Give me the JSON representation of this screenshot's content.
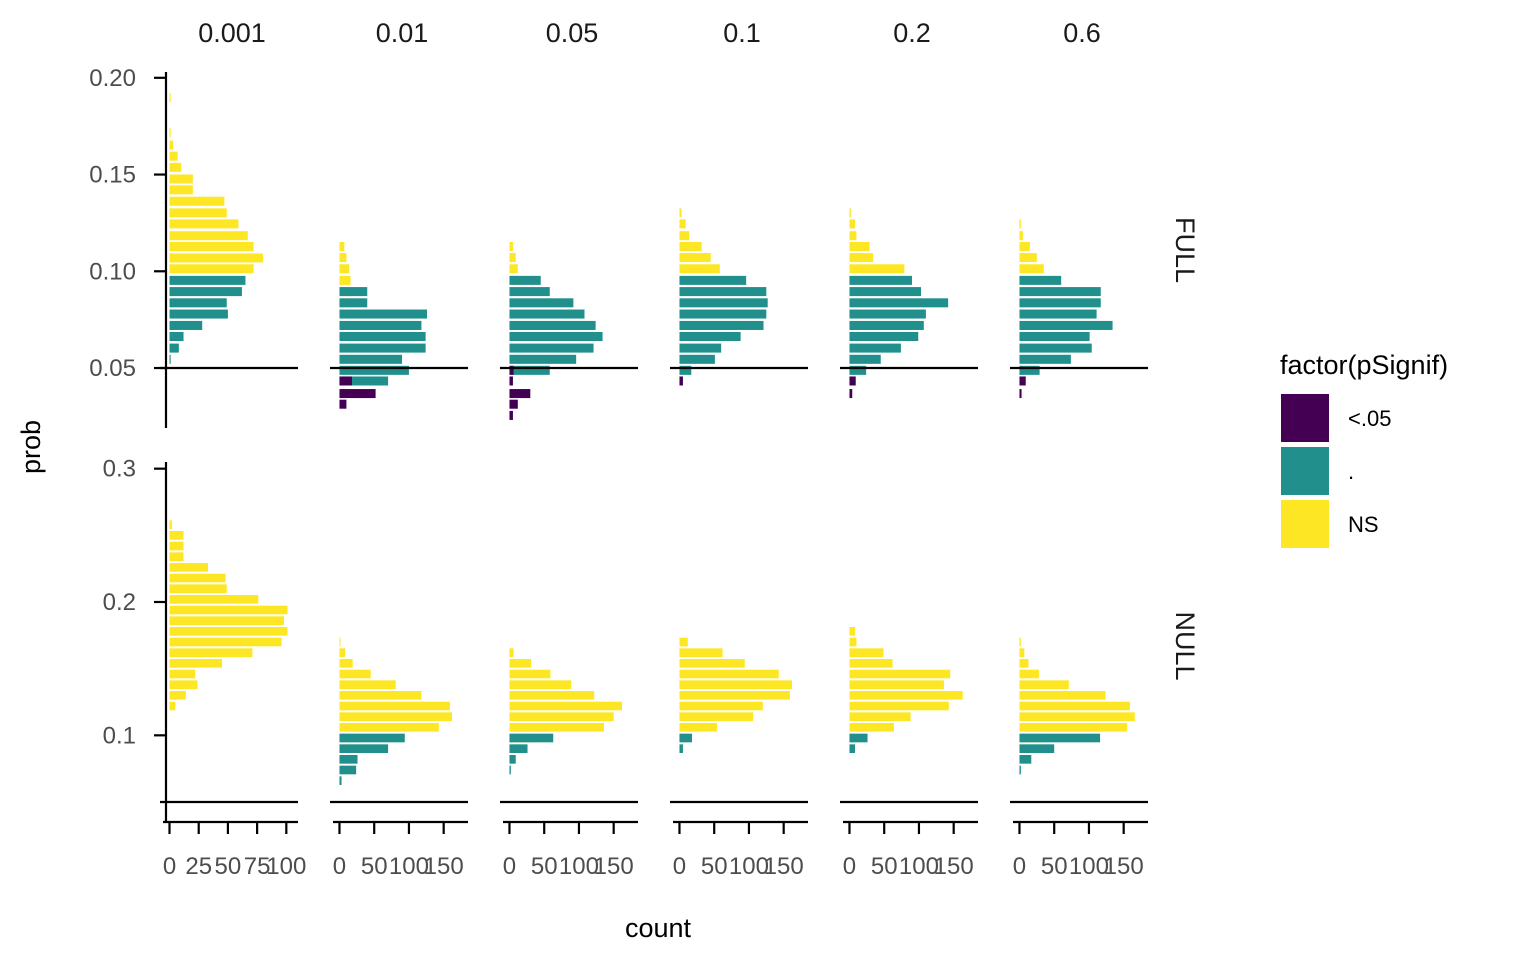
{
  "chart_data": {
    "type": "bar",
    "orientation": "horizontal",
    "facet_columns": [
      "0.001",
      "0.01",
      "0.05",
      "0.1",
      "0.2",
      "0.6"
    ],
    "facet_rows": [
      "FULL",
      "NULL"
    ],
    "xlabel": "count",
    "ylabel": "prob",
    "x_ticks": {
      "0.001": [
        0,
        25,
        50,
        75,
        100
      ],
      "0.01": [
        0,
        50,
        100,
        150
      ],
      "0.05": [
        0,
        50,
        100,
        150
      ],
      "0.1": [
        0,
        50,
        100,
        150
      ],
      "0.2": [
        0,
        50,
        100,
        150
      ],
      "0.6": [
        0,
        50,
        100,
        150
      ]
    },
    "x_tick_labels": {
      "0.001": [
        "0",
        "25",
        "50",
        "75",
        "100"
      ],
      "other": [
        "0",
        "50",
        "100",
        "150"
      ]
    },
    "xlim": {
      "0.001": [
        -3,
        110
      ],
      "other": [
        -5,
        185
      ]
    },
    "rows": {
      "FULL": {
        "ylim": [
          0.019,
          0.203
        ],
        "yticks": [
          0.05,
          0.1,
          0.15,
          0.2
        ],
        "ytick_labels": [
          "0.05",
          "0.10",
          "0.15",
          "0.20"
        ],
        "baseline": 0.05
      },
      "NULL": {
        "ylim": [
          0.035,
          0.305
        ],
        "yticks": [
          0.1,
          0.2,
          0.3
        ],
        "ytick_labels": [
          "0.1",
          "0.2",
          "0.3"
        ],
        "baseline": 0.05
      }
    },
    "legend": {
      "title": "factor(pSignif)",
      "position": "right",
      "entries": [
        {
          "label": "<.05",
          "color": "#440154"
        },
        {
          "label": ".",
          "color": "#21908C"
        },
        {
          "label": "NS",
          "color": "#FDE725"
        }
      ]
    },
    "grid": false,
    "bin_width": {
      "FULL": 0.0057,
      "NULL": 0.008
    },
    "panels": [
      {
        "row": "FULL",
        "col": "0.001",
        "bars": [
          [
            0.1897,
            1,
            "NS"
          ],
          [
            0.1716,
            1,
            "NS"
          ],
          [
            0.1652,
            3,
            "NS"
          ],
          [
            0.1595,
            7,
            "NS"
          ],
          [
            0.1537,
            10,
            "NS"
          ],
          [
            0.1477,
            20,
            "NS"
          ],
          [
            0.1421,
            20,
            "NS"
          ],
          [
            0.1362,
            47,
            "NS"
          ],
          [
            0.1302,
            49,
            "NS"
          ],
          [
            0.1245,
            59,
            "NS"
          ],
          [
            0.1184,
            67,
            "NS"
          ],
          [
            0.1128,
            72,
            "NS"
          ],
          [
            0.1069,
            80,
            "NS"
          ],
          [
            0.1013,
            72,
            "NS"
          ],
          [
            0.0953,
            65,
            "."
          ],
          [
            0.0895,
            62,
            "."
          ],
          [
            0.0837,
            49,
            "."
          ],
          [
            0.0779,
            50,
            "."
          ],
          [
            0.072,
            28,
            "."
          ],
          [
            0.0663,
            12,
            "."
          ],
          [
            0.0603,
            8,
            "."
          ],
          [
            0.0545,
            1,
            "."
          ]
        ]
      },
      {
        "row": "FULL",
        "col": "0.01",
        "bars": [
          [
            0.1128,
            7,
            "NS"
          ],
          [
            0.1071,
            10,
            "NS"
          ],
          [
            0.1013,
            14,
            "NS"
          ],
          [
            0.0953,
            16,
            "NS"
          ],
          [
            0.0895,
            16,
            "NS"
          ],
          [
            0.0895,
            40,
            "."
          ],
          [
            0.0837,
            40,
            "."
          ],
          [
            0.0779,
            126,
            "."
          ],
          [
            0.072,
            118,
            "."
          ],
          [
            0.0663,
            124,
            "."
          ],
          [
            0.0603,
            124,
            "."
          ],
          [
            0.0545,
            90,
            "."
          ],
          [
            0.0488,
            100,
            "."
          ],
          [
            0.0433,
            70,
            "."
          ],
          [
            0.0433,
            18,
            "<.05"
          ],
          [
            0.0368,
            52,
            "<.05"
          ],
          [
            0.0313,
            10,
            "<.05"
          ]
        ]
      },
      {
        "row": "FULL",
        "col": "0.05",
        "bars": [
          [
            0.1128,
            5,
            "NS"
          ],
          [
            0.1071,
            9,
            "NS"
          ],
          [
            0.1013,
            12,
            "NS"
          ],
          [
            0.0953,
            13,
            "NS"
          ],
          [
            0.0953,
            45,
            "."
          ],
          [
            0.0895,
            58,
            "."
          ],
          [
            0.0837,
            92,
            "."
          ],
          [
            0.0779,
            108,
            "."
          ],
          [
            0.072,
            124,
            "."
          ],
          [
            0.0663,
            134,
            "."
          ],
          [
            0.0603,
            121,
            "."
          ],
          [
            0.0545,
            96,
            "."
          ],
          [
            0.0488,
            58,
            "."
          ],
          [
            0.0488,
            6,
            "<.05"
          ],
          [
            0.0433,
            5,
            "<.05"
          ],
          [
            0.0368,
            30,
            "<.05"
          ],
          [
            0.0313,
            12,
            "<.05"
          ],
          [
            0.0255,
            5,
            "<.05"
          ]
        ]
      },
      {
        "row": "FULL",
        "col": "0.1",
        "bars": [
          [
            0.1302,
            3,
            "NS"
          ],
          [
            0.1245,
            9,
            "NS"
          ],
          [
            0.1184,
            14,
            "NS"
          ],
          [
            0.1128,
            32,
            "NS"
          ],
          [
            0.1071,
            45,
            "NS"
          ],
          [
            0.1013,
            58,
            "NS"
          ],
          [
            0.0953,
            96,
            "."
          ],
          [
            0.0895,
            125,
            "."
          ],
          [
            0.0837,
            127,
            "."
          ],
          [
            0.0779,
            125,
            "."
          ],
          [
            0.072,
            121,
            "."
          ],
          [
            0.0663,
            88,
            "."
          ],
          [
            0.0603,
            60,
            "."
          ],
          [
            0.0545,
            51,
            "."
          ],
          [
            0.0488,
            17,
            "."
          ],
          [
            0.0433,
            5,
            "<.05"
          ]
        ]
      },
      {
        "row": "FULL",
        "col": "0.2",
        "bars": [
          [
            0.1302,
            2,
            "NS"
          ],
          [
            0.1245,
            8,
            "NS"
          ],
          [
            0.1184,
            10,
            "NS"
          ],
          [
            0.1128,
            29,
            "NS"
          ],
          [
            0.1071,
            34,
            "NS"
          ],
          [
            0.1013,
            79,
            "NS"
          ],
          [
            0.0953,
            90,
            "."
          ],
          [
            0.0895,
            103,
            "."
          ],
          [
            0.0837,
            142,
            "."
          ],
          [
            0.0779,
            110,
            "."
          ],
          [
            0.072,
            107,
            "."
          ],
          [
            0.0663,
            99,
            "."
          ],
          [
            0.0603,
            74,
            "."
          ],
          [
            0.0545,
            45,
            "."
          ],
          [
            0.0488,
            24,
            "."
          ],
          [
            0.0433,
            9,
            "<.05"
          ],
          [
            0.0368,
            4,
            "<.05"
          ]
        ]
      },
      {
        "row": "FULL",
        "col": "0.6",
        "bars": [
          [
            0.1245,
            2,
            "NS"
          ],
          [
            0.1184,
            5,
            "NS"
          ],
          [
            0.1128,
            15,
            "NS"
          ],
          [
            0.1071,
            25,
            "NS"
          ],
          [
            0.1013,
            35,
            "NS"
          ],
          [
            0.0953,
            60,
            "."
          ],
          [
            0.0895,
            117,
            "."
          ],
          [
            0.0837,
            117,
            "."
          ],
          [
            0.0779,
            111,
            "."
          ],
          [
            0.072,
            134,
            "."
          ],
          [
            0.0663,
            101,
            "."
          ],
          [
            0.0603,
            104,
            "."
          ],
          [
            0.0545,
            74,
            "."
          ],
          [
            0.0488,
            29,
            "."
          ],
          [
            0.0488,
            4,
            "."
          ],
          [
            0.0433,
            9,
            "<.05"
          ],
          [
            0.0368,
            3,
            "<.05"
          ]
        ]
      },
      {
        "row": "NULL",
        "col": "0.001",
        "bars": [
          [
            0.258,
            2,
            "NS"
          ],
          [
            0.25,
            12,
            "NS"
          ],
          [
            0.242,
            12,
            "NS"
          ],
          [
            0.234,
            12,
            "NS"
          ],
          [
            0.226,
            33,
            "NS"
          ],
          [
            0.218,
            48,
            "NS"
          ],
          [
            0.21,
            49,
            "NS"
          ],
          [
            0.202,
            76,
            "NS"
          ],
          [
            0.194,
            101,
            "NS"
          ],
          [
            0.186,
            98,
            "NS"
          ],
          [
            0.178,
            101,
            "NS"
          ],
          [
            0.17,
            96,
            "NS"
          ],
          [
            0.162,
            71,
            "NS"
          ],
          [
            0.154,
            45,
            "NS"
          ],
          [
            0.146,
            22,
            "NS"
          ],
          [
            0.138,
            24,
            "NS"
          ],
          [
            0.13,
            14,
            "NS"
          ],
          [
            0.122,
            5,
            "NS"
          ]
        ]
      },
      {
        "row": "NULL",
        "col": "0.01",
        "bars": [
          [
            0.17,
            1,
            "NS"
          ],
          [
            0.162,
            8,
            "NS"
          ],
          [
            0.154,
            19,
            "NS"
          ],
          [
            0.146,
            45,
            "NS"
          ],
          [
            0.138,
            81,
            "NS"
          ],
          [
            0.13,
            118,
            "NS"
          ],
          [
            0.122,
            159,
            "NS"
          ],
          [
            0.114,
            162,
            "NS"
          ],
          [
            0.106,
            143,
            "NS"
          ],
          [
            0.098,
            23,
            "NS"
          ],
          [
            0.098,
            94,
            "."
          ],
          [
            0.09,
            70,
            "."
          ],
          [
            0.082,
            26,
            "."
          ],
          [
            0.074,
            24,
            "."
          ],
          [
            0.066,
            3,
            "."
          ]
        ]
      },
      {
        "row": "NULL",
        "col": "0.05",
        "bars": [
          [
            0.162,
            6,
            "NS"
          ],
          [
            0.154,
            31,
            "NS"
          ],
          [
            0.146,
            59,
            "NS"
          ],
          [
            0.138,
            89,
            "NS"
          ],
          [
            0.13,
            122,
            "NS"
          ],
          [
            0.122,
            162,
            "NS"
          ],
          [
            0.114,
            150,
            "NS"
          ],
          [
            0.106,
            136,
            "NS"
          ],
          [
            0.098,
            33,
            "NS"
          ],
          [
            0.098,
            63,
            "."
          ],
          [
            0.09,
            26,
            "."
          ],
          [
            0.082,
            9,
            "."
          ],
          [
            0.074,
            2,
            "."
          ]
        ]
      },
      {
        "row": "NULL",
        "col": "0.1",
        "bars": [
          [
            0.17,
            12,
            "NS"
          ],
          [
            0.162,
            62,
            "NS"
          ],
          [
            0.154,
            94,
            "NS"
          ],
          [
            0.146,
            143,
            "NS"
          ],
          [
            0.138,
            162,
            "NS"
          ],
          [
            0.13,
            159,
            "NS"
          ],
          [
            0.122,
            120,
            "NS"
          ],
          [
            0.114,
            106,
            "NS"
          ],
          [
            0.106,
            54,
            "NS"
          ],
          [
            0.098,
            8,
            "NS"
          ],
          [
            0.098,
            18,
            "."
          ],
          [
            0.09,
            5,
            "."
          ]
        ]
      },
      {
        "row": "NULL",
        "col": "0.2",
        "bars": [
          [
            0.178,
            8,
            "NS"
          ],
          [
            0.17,
            10,
            "NS"
          ],
          [
            0.162,
            49,
            "NS"
          ],
          [
            0.154,
            62,
            "NS"
          ],
          [
            0.146,
            145,
            "NS"
          ],
          [
            0.138,
            136,
            "NS"
          ],
          [
            0.13,
            163,
            "NS"
          ],
          [
            0.122,
            143,
            "NS"
          ],
          [
            0.114,
            88,
            "NS"
          ],
          [
            0.106,
            64,
            "NS"
          ],
          [
            0.098,
            9,
            "NS"
          ],
          [
            0.098,
            26,
            "."
          ],
          [
            0.09,
            8,
            "."
          ]
        ]
      },
      {
        "row": "NULL",
        "col": "0.6",
        "bars": [
          [
            0.17,
            2,
            "NS"
          ],
          [
            0.162,
            7,
            "NS"
          ],
          [
            0.154,
            13,
            "NS"
          ],
          [
            0.146,
            28,
            "NS"
          ],
          [
            0.138,
            71,
            "NS"
          ],
          [
            0.13,
            124,
            "NS"
          ],
          [
            0.122,
            159,
            "NS"
          ],
          [
            0.114,
            166,
            "NS"
          ],
          [
            0.106,
            155,
            "NS"
          ],
          [
            0.098,
            36,
            "NS"
          ],
          [
            0.098,
            116,
            "."
          ],
          [
            0.09,
            50,
            "."
          ],
          [
            0.082,
            17,
            "."
          ],
          [
            0.074,
            2,
            "."
          ]
        ]
      }
    ]
  }
}
